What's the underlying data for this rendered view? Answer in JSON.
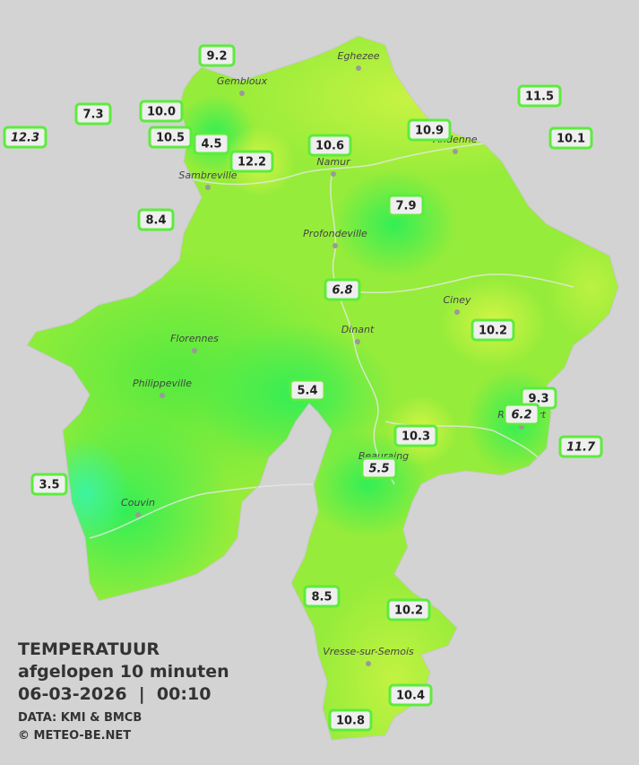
{
  "title": {
    "lines": [
      "TEMPERATUUR",
      "afgelopen 10 minuten",
      "06-03-2026  |  00:10"
    ],
    "credits": [
      "DATA: KMI & BMCB",
      "© METEO-BE.NET"
    ]
  },
  "cities": [
    "Eghezee",
    "Gembloux",
    "Andenne",
    "Namur",
    "Sambreville",
    "Profondeville",
    "Ciney",
    "Dinant",
    "Florennes",
    "Philippeville",
    "Rochefort",
    "Beauraing",
    "Couvin",
    "Vresse-sur-Semois"
  ],
  "stations": [
    {
      "label": "9.2",
      "italic": false
    },
    {
      "label": "7.3",
      "italic": false
    },
    {
      "label": "10.0",
      "italic": false
    },
    {
      "label": "12.3",
      "italic": true
    },
    {
      "label": "10.5",
      "italic": false
    },
    {
      "label": "4.5",
      "italic": false
    },
    {
      "label": "12.2",
      "italic": false
    },
    {
      "label": "10.6",
      "italic": false
    },
    {
      "label": "10.9",
      "italic": false
    },
    {
      "label": "11.5",
      "italic": false
    },
    {
      "label": "10.1",
      "italic": false
    },
    {
      "label": "8.4",
      "italic": false
    },
    {
      "label": "7.9",
      "italic": false
    },
    {
      "label": "6.8",
      "italic": true
    },
    {
      "label": "10.2",
      "italic": false
    },
    {
      "label": "5.4",
      "italic": false
    },
    {
      "label": "9.3",
      "italic": false
    },
    {
      "label": "6.2",
      "italic": true
    },
    {
      "label": "10.3",
      "italic": false
    },
    {
      "label": "11.7",
      "italic": true
    },
    {
      "label": "5.5",
      "italic": true
    },
    {
      "label": "3.5",
      "italic": false
    },
    {
      "label": "8.5",
      "italic": false
    },
    {
      "label": "10.2",
      "italic": false
    },
    {
      "label": "10.4",
      "italic": false
    },
    {
      "label": "10.8",
      "italic": false
    }
  ]
}
